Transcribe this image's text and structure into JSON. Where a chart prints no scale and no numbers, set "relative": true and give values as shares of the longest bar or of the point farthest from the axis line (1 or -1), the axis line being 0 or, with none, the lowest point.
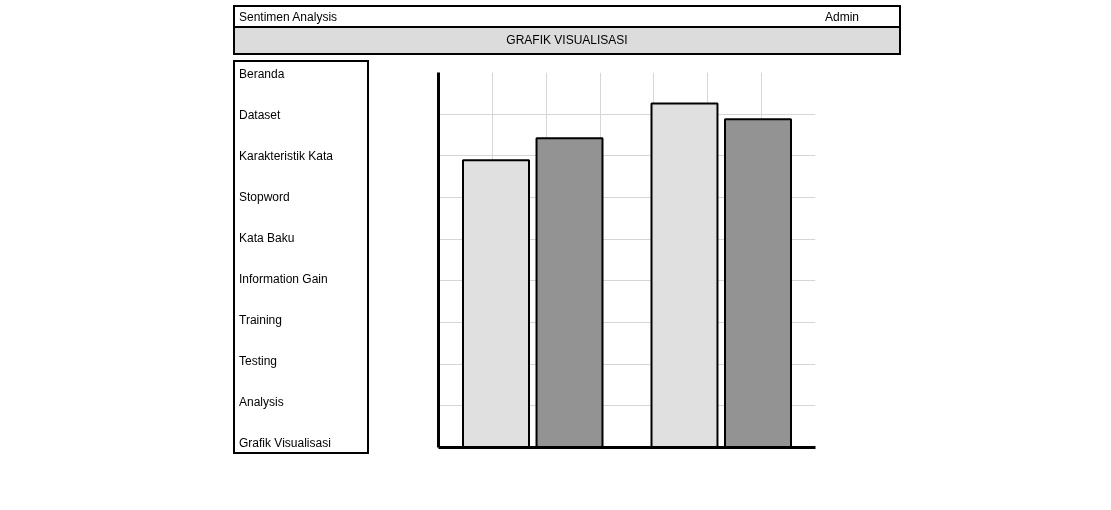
{
  "chart_data": {
    "type": "bar",
    "relative": true,
    "title": "GRAFIK VISUALISASI",
    "categories": [
      null,
      null
    ],
    "series": [
      {
        "color": "#e0e0e0",
        "values": [
          0.835,
          1
        ]
      },
      {
        "color": "#939393",
        "values": [
          0.899,
          0.954
        ]
      }
    ],
    "annotations": [
      "Sentimen Analysis",
      "Admin",
      "Beranda",
      "Dataset",
      "Karakteristik Kata",
      "Stopword",
      "Kata Baku",
      "Information Gain",
      "Training",
      "Testing",
      "Analysis",
      "Grafik Visualisasi"
    ],
    "grid": true
  }
}
